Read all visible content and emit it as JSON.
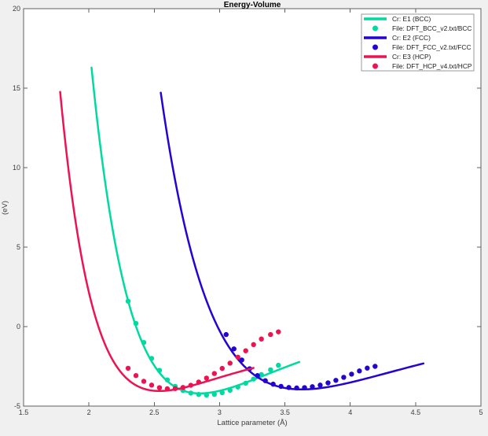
{
  "figure": {
    "background": "#f0f0f0",
    "plot_background": "#ffffff",
    "axis_color": "#5f5f5f",
    "text_color": "#3c3c3c",
    "legend_border_color": "#999999"
  },
  "chart_data": {
    "type": "line",
    "title": "Energy-Volume",
    "xlabel": "Lattice parameter (Å)",
    "ylabel": "(eV)",
    "xlim": [
      1.5,
      5
    ],
    "ylim": [
      -5,
      20
    ],
    "xtick_values": [
      1.5,
      2,
      2.5,
      3,
      3.5,
      4,
      4.5,
      5
    ],
    "xtick_labels": [
      "1.5",
      "2",
      "2.5",
      "3",
      "3.5",
      "4",
      "4.5",
      "5"
    ],
    "ytick_values": [
      -5,
      0,
      5,
      10,
      15,
      20
    ],
    "ytick_labels": [
      "-5",
      "0",
      "5",
      "10",
      "15",
      "20"
    ],
    "grid": false,
    "legend_position": "top-right",
    "series": [
      {
        "id": "bcc-fit",
        "name": "Cr: E1 (BCC)",
        "type": "curve",
        "color": "#00d9a0",
        "x_range": [
          2.02,
          3.61
        ],
        "morse": {
          "emin": -4.2,
          "d": 4.8,
          "b": 1.35,
          "a0": 2.85
        },
        "key_points": {
          "start": [
            2.02,
            15.7
          ],
          "min": [
            2.85,
            -4.2
          ],
          "end": [
            3.61,
            -2.4
          ]
        }
      },
      {
        "id": "bcc-dft",
        "name": "File: DFT_BCC_v2.txt/BCC",
        "type": "dots",
        "color": "#00d9a0",
        "points": [
          [
            2.3,
            1.6
          ],
          [
            2.36,
            0.2
          ],
          [
            2.42,
            -1.0
          ],
          [
            2.48,
            -2.0
          ],
          [
            2.54,
            -2.75
          ],
          [
            2.6,
            -3.35
          ],
          [
            2.66,
            -3.76
          ],
          [
            2.72,
            -4.02
          ],
          [
            2.78,
            -4.18
          ],
          [
            2.84,
            -4.27
          ],
          [
            2.9,
            -4.31
          ],
          [
            2.96,
            -4.26
          ],
          [
            3.02,
            -4.16
          ],
          [
            3.08,
            -4.0
          ],
          [
            3.14,
            -3.8
          ],
          [
            3.2,
            -3.56
          ],
          [
            3.26,
            -3.3
          ],
          [
            3.32,
            -3.02
          ],
          [
            3.39,
            -2.72
          ],
          [
            3.45,
            -2.43
          ]
        ]
      },
      {
        "id": "fcc-fit",
        "name": "Cr: E2 (FCC)",
        "type": "curve",
        "color": "#2404d4",
        "x_range": [
          2.55,
          4.56
        ],
        "morse": {
          "emin": -3.95,
          "d": 4.2,
          "b": 1.05,
          "a0": 3.63
        },
        "key_points": {
          "start": [
            2.55,
            14.6
          ],
          "min": [
            3.63,
            -3.95
          ],
          "end": [
            4.56,
            -2.35
          ]
        }
      },
      {
        "id": "fcc-dft",
        "name": "File: DFT_FCC_v2.txt/FCC",
        "type": "dots",
        "color": "#2404d4",
        "points": [
          [
            3.05,
            -0.5
          ],
          [
            3.11,
            -1.4
          ],
          [
            3.17,
            -2.1
          ],
          [
            3.23,
            -2.65
          ],
          [
            3.29,
            -3.08
          ],
          [
            3.35,
            -3.4
          ],
          [
            3.41,
            -3.62
          ],
          [
            3.47,
            -3.76
          ],
          [
            3.53,
            -3.83
          ],
          [
            3.59,
            -3.86
          ],
          [
            3.65,
            -3.84
          ],
          [
            3.71,
            -3.78
          ],
          [
            3.77,
            -3.68
          ],
          [
            3.83,
            -3.54
          ],
          [
            3.89,
            -3.38
          ],
          [
            3.95,
            -3.19
          ],
          [
            4.01,
            -2.99
          ],
          [
            4.07,
            -2.79
          ],
          [
            4.13,
            -2.61
          ],
          [
            4.19,
            -2.5
          ]
        ]
      },
      {
        "id": "hcp-fit",
        "name": "Cr: E3 (HCP)",
        "type": "curve",
        "color": "#ec1352",
        "x_range": [
          1.78,
          3.26
        ],
        "morse": {
          "emin": -4.05,
          "d": 3.0,
          "b": 1.65,
          "a0": 2.54
        },
        "key_points": {
          "start": [
            1.78,
            14.6
          ],
          "min": [
            2.54,
            -4.05
          ],
          "end": [
            3.26,
            -2.8
          ]
        }
      },
      {
        "id": "hcp-dft",
        "name": "File: DFT_HCP_v4.txt/HCP",
        "type": "dots",
        "color": "#ec1352",
        "points": [
          [
            2.3,
            -2.62
          ],
          [
            2.36,
            -3.08
          ],
          [
            2.42,
            -3.44
          ],
          [
            2.48,
            -3.68
          ],
          [
            2.54,
            -3.84
          ],
          [
            2.6,
            -3.91
          ],
          [
            2.66,
            -3.9
          ],
          [
            2.72,
            -3.83
          ],
          [
            2.78,
            -3.69
          ],
          [
            2.84,
            -3.49
          ],
          [
            2.9,
            -3.24
          ],
          [
            2.96,
            -2.95
          ],
          [
            3.02,
            -2.63
          ],
          [
            3.08,
            -2.3
          ],
          [
            3.14,
            -1.92
          ],
          [
            3.2,
            -1.52
          ],
          [
            3.26,
            -1.13
          ],
          [
            3.32,
            -0.78
          ],
          [
            3.39,
            -0.5
          ],
          [
            3.45,
            -0.33
          ]
        ]
      }
    ]
  }
}
